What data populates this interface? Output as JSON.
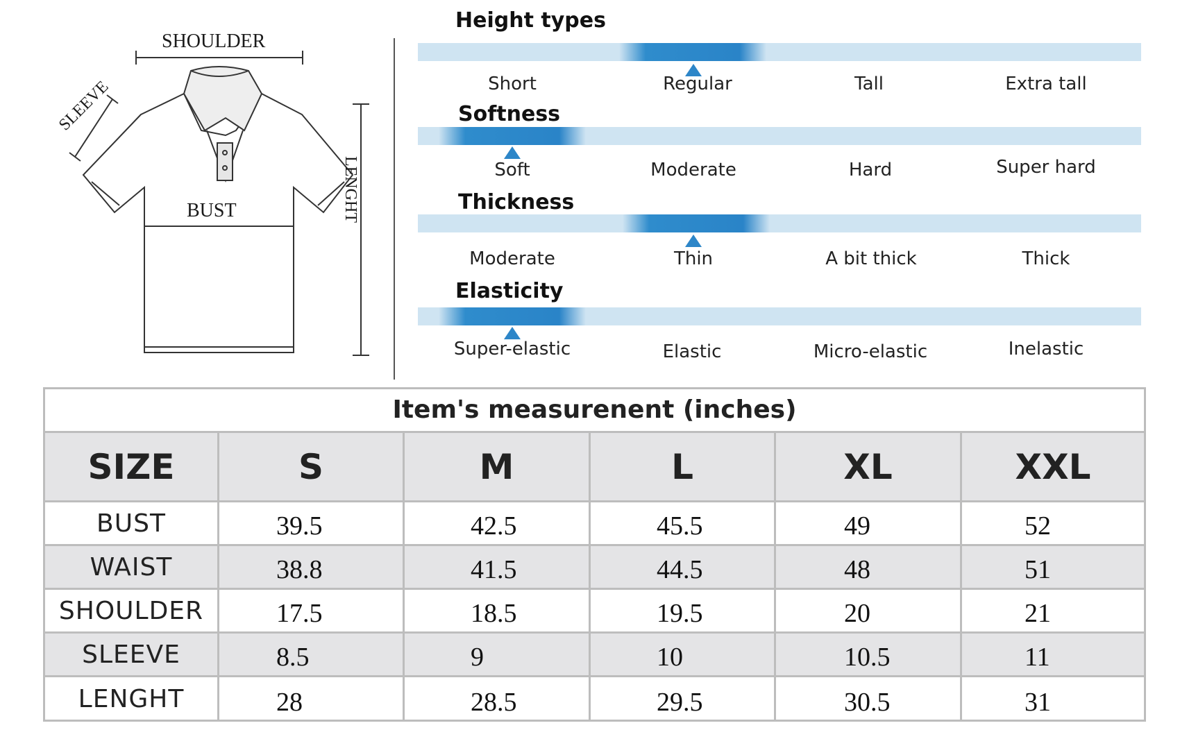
{
  "diagram": {
    "shoulder_label": "SHOULDER",
    "sleeve_label": "SLEEVE",
    "bust_label": "BUST",
    "length_label": "LENGHT"
  },
  "scales": [
    {
      "title": "Height types",
      "options": [
        "Short",
        "Regular",
        "Tall",
        "Extra tall"
      ],
      "selected_index": 1
    },
    {
      "title": "Softness",
      "options": [
        "Soft",
        "Moderate",
        "Hard",
        "Super hard"
      ],
      "selected_index": 0
    },
    {
      "title": "Thickness",
      "options": [
        "Moderate",
        "Thin",
        "A bit thick",
        "Thick"
      ],
      "selected_index": 1
    },
    {
      "title": "Elasticity",
      "options": [
        "Super-elastic",
        "Elastic",
        "Micro-elastic",
        "Inelastic"
      ],
      "selected_index": 0
    }
  ],
  "colors": {
    "scale_track": "#cfe4f2",
    "scale_highlight": "#2f8ccc",
    "table_border": "#bdbdbd",
    "table_shade": "#e4e4e6"
  },
  "table": {
    "title": "Item's measurenent (inches)",
    "header": [
      "SIZE",
      "S",
      "M",
      "L",
      "XL",
      "XXL"
    ],
    "rows": [
      {
        "label": "BUST",
        "values": [
          "39.5",
          "42.5",
          "45.5",
          "49",
          "52"
        ]
      },
      {
        "label": "WAIST",
        "values": [
          "38.8",
          "41.5",
          "44.5",
          "48",
          "51"
        ]
      },
      {
        "label": "SHOULDER",
        "values": [
          "17.5",
          "18.5",
          "19.5",
          "20",
          "21"
        ]
      },
      {
        "label": "SLEEVE",
        "values": [
          "8.5",
          "9",
          "10",
          "10.5",
          "11"
        ]
      },
      {
        "label": "LENGHT",
        "values": [
          "28",
          "28.5",
          "29.5",
          "30.5",
          "31"
        ]
      }
    ]
  }
}
